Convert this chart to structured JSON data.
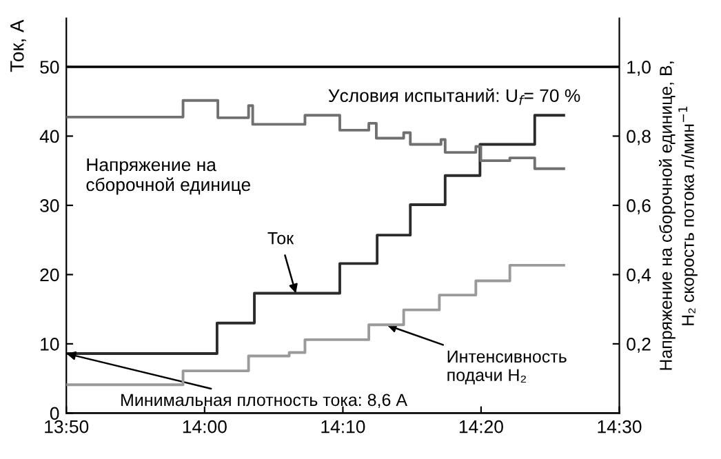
{
  "chart_data": {
    "type": "step",
    "ylabel": "Ток, А",
    "y2label": "Напряжение на сборочной единице, В,\nH₂ скорость потока л/мин$^{−1}$",
    "xlim": [
      13.8333,
      14.5
    ],
    "xticks": [
      {
        "value": 13.8333,
        "label": "13:50"
      },
      {
        "value": 14.0,
        "label": "14:00"
      },
      {
        "value": 14.1667,
        "label": "14:10"
      },
      {
        "value": 14.3333,
        "label": "14:20"
      },
      {
        "value": 14.5,
        "label": "14:30"
      }
    ],
    "ylim": [
      0,
      57
    ],
    "yticks": [
      0,
      10,
      20,
      30,
      40,
      50
    ],
    "y2lim": [
      0,
      1.14
    ],
    "y2ticks": [
      {
        "value": 0.2,
        "label": "0,2"
      },
      {
        "value": 0.4,
        "label": "0,4"
      },
      {
        "value": 0.6,
        "label": "0,6"
      },
      {
        "value": 0.8,
        "label": "0,8"
      },
      {
        "value": 1.0,
        "label": "1,0"
      }
    ],
    "grid": false,
    "series": [
      {
        "color": "#2b2b2b",
        "x": [
          13.8333,
          14.015,
          14.06,
          14.163,
          14.208,
          14.248,
          14.29,
          14.332,
          14.398,
          14.433
        ],
        "values": [
          8.6,
          13,
          17.3,
          21.6,
          25.7,
          30.1,
          34.3,
          38.8,
          43.0,
          43.0
        ]
      },
      {
        "color": "#707070",
        "axis": "y2",
        "x": [
          13.8333,
          13.974,
          14.016,
          14.053,
          14.058,
          14.121,
          14.163,
          14.198,
          14.207,
          14.24,
          14.248,
          14.285,
          14.29,
          14.327,
          14.333,
          14.368,
          14.398,
          14.433
        ],
        "values": [
          0.855,
          0.903,
          0.853,
          0.888,
          0.834,
          0.86,
          0.817,
          0.837,
          0.794,
          0.81,
          0.776,
          0.79,
          0.753,
          0.77,
          0.729,
          0.737,
          0.706,
          0.706
        ]
      },
      {
        "color": "#9a9a9a",
        "axis": "y2",
        "x": [
          13.8333,
          13.974,
          14.053,
          14.102,
          14.121,
          14.198,
          14.24,
          14.283,
          14.327,
          14.368,
          14.433
        ],
        "values": [
          0.082,
          0.122,
          0.165,
          0.175,
          0.212,
          0.255,
          0.298,
          0.341,
          0.382,
          0.427,
          0.427
        ]
      }
    ],
    "ref_lines": [
      {
        "axis": "y",
        "value": 50,
        "color": "#000000"
      }
    ],
    "annotations": [
      "Условия испытаний: U$_{f}$= 70 %",
      "Напряжение на\nсборочной единице",
      {
        "text": "Ток",
        "x": 14.11,
        "y": 17.3
      },
      {
        "text": "Интенсивность\nподачи H₂",
        "x": 14.22,
        "y": 12.7
      },
      {
        "text": "Минимальная плотность тока: 8,6 А",
        "x": 13.8333,
        "y": 8.6
      }
    ]
  }
}
